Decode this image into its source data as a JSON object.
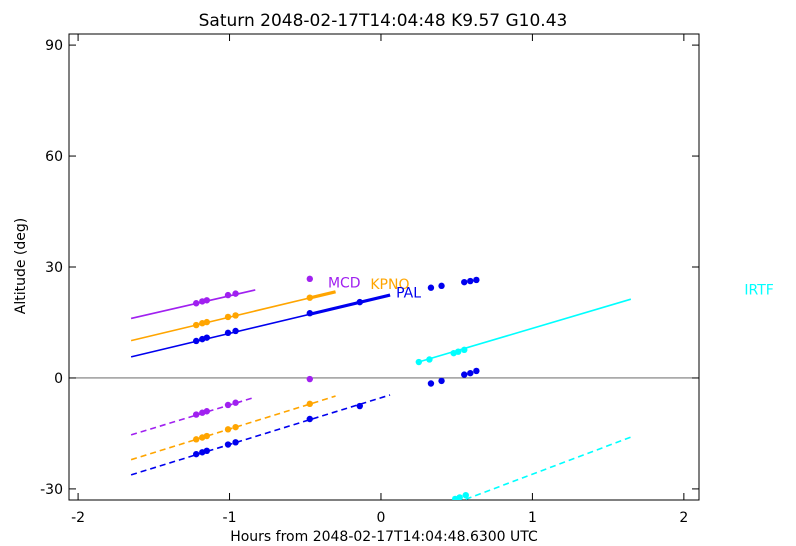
{
  "chart_data": {
    "type": "line",
    "title": "Saturn 2048-02-17T14:04:48  K9.57  G10.43",
    "xlabel": "Hours from 2048-02-17T14:04:48.6300 UTC",
    "ylabel": "Altitude (deg)",
    "xlim": [
      -2.06,
      2.1
    ],
    "ylim": [
      -33,
      93
    ],
    "x_ticks": [
      -2,
      -1,
      0,
      1,
      2
    ],
    "x_tick_labels": [
      "-2",
      "-1",
      "0",
      "1",
      "2"
    ],
    "y_ticks": [
      -30,
      0,
      30,
      60,
      90
    ],
    "y_tick_labels": [
      "-30",
      "0",
      "30",
      "60",
      "90"
    ],
    "zero_line": 0,
    "grid": false,
    "series": [
      {
        "name": "MCD",
        "color": "#a020f0",
        "label_x": -0.35,
        "label_y": 24.5,
        "line": {
          "x": [
            -1.65,
            -0.83
          ],
          "y": [
            16.1,
            23.8
          ]
        },
        "dashed": {
          "x": [
            -1.65,
            -0.83
          ],
          "y": [
            -15.4,
            -5.2
          ]
        },
        "points": {
          "x": [
            -1.22,
            -1.18,
            -1.15,
            -1.01,
            -0.96,
            -0.47,
            -1.22,
            -1.18,
            -1.15,
            -1.01,
            -0.96,
            -0.47
          ],
          "y": [
            20.2,
            20.7,
            21.0,
            22.4,
            22.8,
            26.8,
            -9.9,
            -9.4,
            -9.0,
            -7.3,
            -6.7,
            -0.3
          ]
        }
      },
      {
        "name": "KPNO",
        "color": "#ffa500",
        "label_x": -0.07,
        "label_y": 24.0,
        "line": {
          "x": [
            -1.65,
            -0.3
          ],
          "y": [
            10.1,
            23.3
          ]
        },
        "bold_x": [
          -0.47,
          -0.3
        ],
        "dashed": {
          "x": [
            -1.65,
            -0.3
          ],
          "y": [
            -22.1,
            -4.9
          ]
        },
        "points": {
          "x": [
            -1.22,
            -1.18,
            -1.15,
            -1.01,
            -0.96,
            -0.47,
            -1.22,
            -1.18,
            -1.15,
            -1.01,
            -0.96,
            -0.47
          ],
          "y": [
            14.3,
            14.8,
            15.1,
            16.5,
            16.9,
            21.7,
            -16.6,
            -16.1,
            -15.7,
            -13.9,
            -13.3,
            -7.0
          ]
        }
      },
      {
        "name": "PAL",
        "color": "#0000ee",
        "label_x": 0.1,
        "label_y": 21.8,
        "line": {
          "x": [
            -1.65,
            0.06
          ],
          "y": [
            5.7,
            22.4
          ]
        },
        "bold_x": [
          -0.47,
          0.06
        ],
        "dashed": {
          "x": [
            -1.65,
            0.06
          ],
          "y": [
            -26.2,
            -4.6
          ]
        },
        "points": {
          "x": [
            -1.22,
            -1.18,
            -1.15,
            -1.01,
            -0.96,
            -0.47,
            -0.14,
            0.33,
            0.4,
            0.55,
            0.59,
            0.63,
            -1.22,
            -1.18,
            -1.15,
            -1.01,
            -0.96,
            -0.47,
            -0.14,
            0.33,
            0.4,
            0.55,
            0.59,
            0.63
          ],
          "y": [
            10.0,
            10.5,
            10.9,
            12.2,
            12.7,
            17.5,
            20.5,
            24.4,
            24.9,
            25.9,
            26.2,
            26.5,
            -20.6,
            -20.1,
            -19.7,
            -18.0,
            -17.4,
            -11.1,
            -7.6,
            -1.5,
            -0.8,
            0.9,
            1.3,
            1.9
          ]
        }
      },
      {
        "name": "IRTF",
        "color": "#00ffff",
        "label_x": 2.4,
        "label_y": 22.5,
        "line": {
          "x": [
            0.24,
            1.65
          ],
          "y": [
            4.2,
            21.3
          ]
        },
        "dashed": {
          "x": [
            0.56,
            1.65
          ],
          "y": [
            -32.8,
            -16.0
          ]
        },
        "points": {
          "x": [
            0.25,
            0.32,
            0.48,
            0.51,
            0.55,
            0.49,
            0.52,
            0.56
          ],
          "y": [
            4.3,
            5.0,
            6.7,
            7.1,
            7.6,
            -32.7,
            -32.3,
            -31.7
          ]
        }
      }
    ]
  }
}
